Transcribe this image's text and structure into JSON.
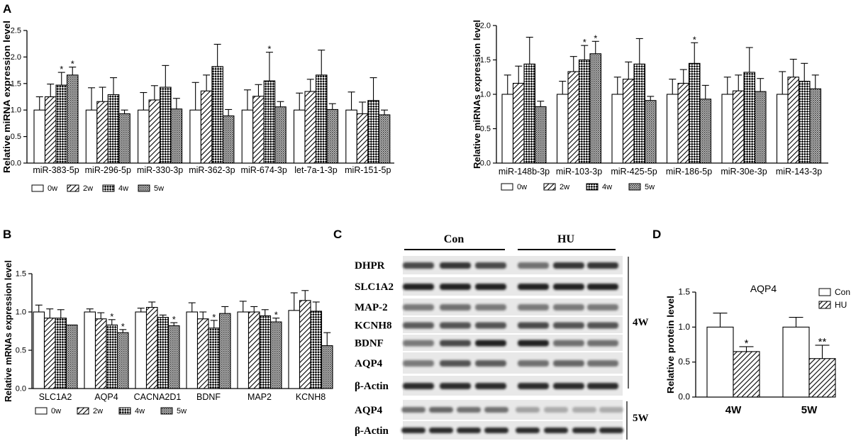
{
  "panel_letters": {
    "a": "A",
    "b": "B",
    "c": "C",
    "d": "D"
  },
  "colors": {
    "axis": "#000000",
    "bar_fill": "#ffffff",
    "blot_bg": "#e6e6e6",
    "band": "#2a2a2a"
  },
  "patterns": {
    "0w": "white",
    "2w": "diagonal-hatch",
    "4w": "checker",
    "5w": "dense-dots",
    "Con": "white",
    "HU": "diagonal-hatch"
  },
  "chart_data": [
    {
      "panel": "A",
      "type": "bar",
      "ylabel": "Relative miRNA expression level",
      "ylim": [
        0,
        2.5
      ],
      "yticks": [
        "0.0",
        "0.5",
        "1.0",
        "1.5",
        "2.0",
        "2.5"
      ],
      "categories": [
        "miR-383-5p",
        "miR-296-5p",
        "miR-330-3p",
        "miR-362-3p",
        "miR-674-3p",
        "let-7a-1-3p",
        "miR-151-5p"
      ],
      "series": [
        {
          "name": "0w",
          "values": [
            1.0,
            1.0,
            1.0,
            1.0,
            1.0,
            1.0,
            1.0
          ],
          "errors": [
            0.25,
            0.42,
            0.33,
            0.52,
            0.38,
            0.32,
            0.34
          ]
        },
        {
          "name": "2w",
          "values": [
            1.25,
            1.16,
            1.19,
            1.36,
            1.26,
            1.35,
            0.93
          ],
          "errors": [
            0.24,
            0.27,
            0.27,
            0.3,
            0.22,
            0.23,
            0.22
          ]
        },
        {
          "name": "4w",
          "values": [
            1.47,
            1.29,
            1.43,
            1.82,
            1.55,
            1.66,
            1.18
          ],
          "errors": [
            0.24,
            0.32,
            0.41,
            0.42,
            0.54,
            0.47,
            0.43
          ]
        },
        {
          "name": "5w",
          "values": [
            1.66,
            0.93,
            1.02,
            0.89,
            1.06,
            1.01,
            0.91
          ],
          "errors": [
            0.15,
            0.07,
            0.2,
            0.12,
            0.1,
            0.11,
            0.09
          ]
        }
      ],
      "significance": [
        {
          "category": 0,
          "series": 2,
          "text": "*"
        },
        {
          "category": 0,
          "series": 3,
          "text": "*"
        },
        {
          "category": 4,
          "series": 2,
          "text": "*"
        }
      ],
      "legend": [
        "0w",
        "2w",
        "4w",
        "5w"
      ],
      "legend_position": "bottom"
    },
    {
      "panel": "A",
      "type": "bar",
      "ylabel": "Relative miRNAs expression level",
      "ylim": [
        0,
        2.0
      ],
      "yticks": [
        "0.0",
        "0.5",
        "1.0",
        "1.5",
        "2.0"
      ],
      "categories": [
        "miR-148b-3p",
        "miR-103-3p",
        "miR-425-5p",
        "miR-186-5p",
        "miR-30e-3p",
        "miR-143-3p"
      ],
      "series": [
        {
          "name": "0w",
          "values": [
            1.0,
            1.0,
            1.0,
            1.0,
            1.0,
            1.0
          ],
          "errors": [
            0.28,
            0.19,
            0.25,
            0.22,
            0.25,
            0.33
          ]
        },
        {
          "name": "2w",
          "values": [
            1.16,
            1.33,
            1.22,
            1.16,
            1.05,
            1.25
          ],
          "errors": [
            0.25,
            0.22,
            0.25,
            0.2,
            0.23,
            0.26
          ]
        },
        {
          "name": "4w",
          "values": [
            1.44,
            1.5,
            1.44,
            1.45,
            1.32,
            1.19
          ],
          "errors": [
            0.39,
            0.21,
            0.37,
            0.3,
            0.36,
            0.26
          ]
        },
        {
          "name": "5w",
          "values": [
            0.82,
            1.59,
            0.91,
            0.93,
            1.04,
            1.08
          ],
          "errors": [
            0.08,
            0.18,
            0.06,
            0.2,
            0.19,
            0.2
          ]
        }
      ],
      "significance": [
        {
          "category": 1,
          "series": 2,
          "text": "*"
        },
        {
          "category": 1,
          "series": 3,
          "text": "*"
        },
        {
          "category": 3,
          "series": 2,
          "text": "*"
        }
      ],
      "legend": [
        "0w",
        "2w",
        "4w",
        "5w"
      ],
      "legend_position": "bottom"
    },
    {
      "panel": "B",
      "type": "bar",
      "ylabel": "Relative mRNAs expression level",
      "ylim": [
        0,
        1.5
      ],
      "yticks": [
        "0.0",
        "0.5",
        "1.0",
        "1.5"
      ],
      "categories": [
        "SLC1A2",
        "AQP4",
        "CACNA2D1",
        "BDNF",
        "MAP2",
        "KCNH8"
      ],
      "series": [
        {
          "name": "0w",
          "values": [
            1.0,
            1.0,
            1.0,
            1.0,
            1.0,
            1.02
          ],
          "errors": [
            0.09,
            0.04,
            0.05,
            0.12,
            0.14,
            0.23
          ]
        },
        {
          "name": "2w",
          "values": [
            0.92,
            0.91,
            1.06,
            0.91,
            1.0,
            1.15
          ],
          "errors": [
            0.12,
            0.08,
            0.07,
            0.09,
            0.07,
            0.13
          ]
        },
        {
          "name": "4w",
          "values": [
            0.92,
            0.83,
            0.93,
            0.79,
            0.95,
            1.01
          ],
          "errors": [
            0.11,
            0.07,
            0.03,
            0.1,
            0.08,
            0.12
          ]
        },
        {
          "name": "5w",
          "values": [
            0.83,
            0.73,
            0.82,
            0.98,
            0.87,
            0.56
          ],
          "errors": [
            0.0,
            0.04,
            0.04,
            0.09,
            0.05,
            0.17
          ]
        }
      ],
      "significance": [
        {
          "category": 1,
          "series": 2,
          "text": "*"
        },
        {
          "category": 1,
          "series": 3,
          "text": "*"
        },
        {
          "category": 2,
          "series": 3,
          "text": "*"
        },
        {
          "category": 3,
          "series": 2,
          "text": "*"
        },
        {
          "category": 4,
          "series": 3,
          "text": "*"
        }
      ],
      "legend": [
        "0w",
        "2w",
        "4w",
        "5w"
      ],
      "legend_position": "bottom"
    },
    {
      "panel": "D",
      "type": "bar",
      "title": "AQP4",
      "ylabel": "Relative protein level",
      "ylim": [
        0,
        1.5
      ],
      "yticks": [
        "0.0",
        "0.5",
        "1.0",
        "1.5"
      ],
      "categories": [
        "4W",
        "5W"
      ],
      "series": [
        {
          "name": "Con",
          "values": [
            1.0,
            1.0
          ],
          "errors": [
            0.2,
            0.14
          ]
        },
        {
          "name": "HU",
          "values": [
            0.65,
            0.55
          ],
          "errors": [
            0.07,
            0.19
          ]
        }
      ],
      "significance": [
        {
          "category": 0,
          "series": 1,
          "text": "*"
        },
        {
          "category": 1,
          "series": 1,
          "text": "**"
        }
      ],
      "legend": [
        "Con",
        "HU"
      ],
      "legend_position": "top-right"
    }
  ],
  "blot": {
    "groups": [
      "Con",
      "HU"
    ],
    "rows_4w": [
      "DHPR",
      "SLC1A2",
      "MAP-2",
      "KCNH8",
      "BDNF",
      "AQP4",
      "β-Actin"
    ],
    "rows_5w": [
      "AQP4",
      "β-Actin"
    ],
    "timepoint_4w": "4W",
    "timepoint_5w": "5W"
  }
}
